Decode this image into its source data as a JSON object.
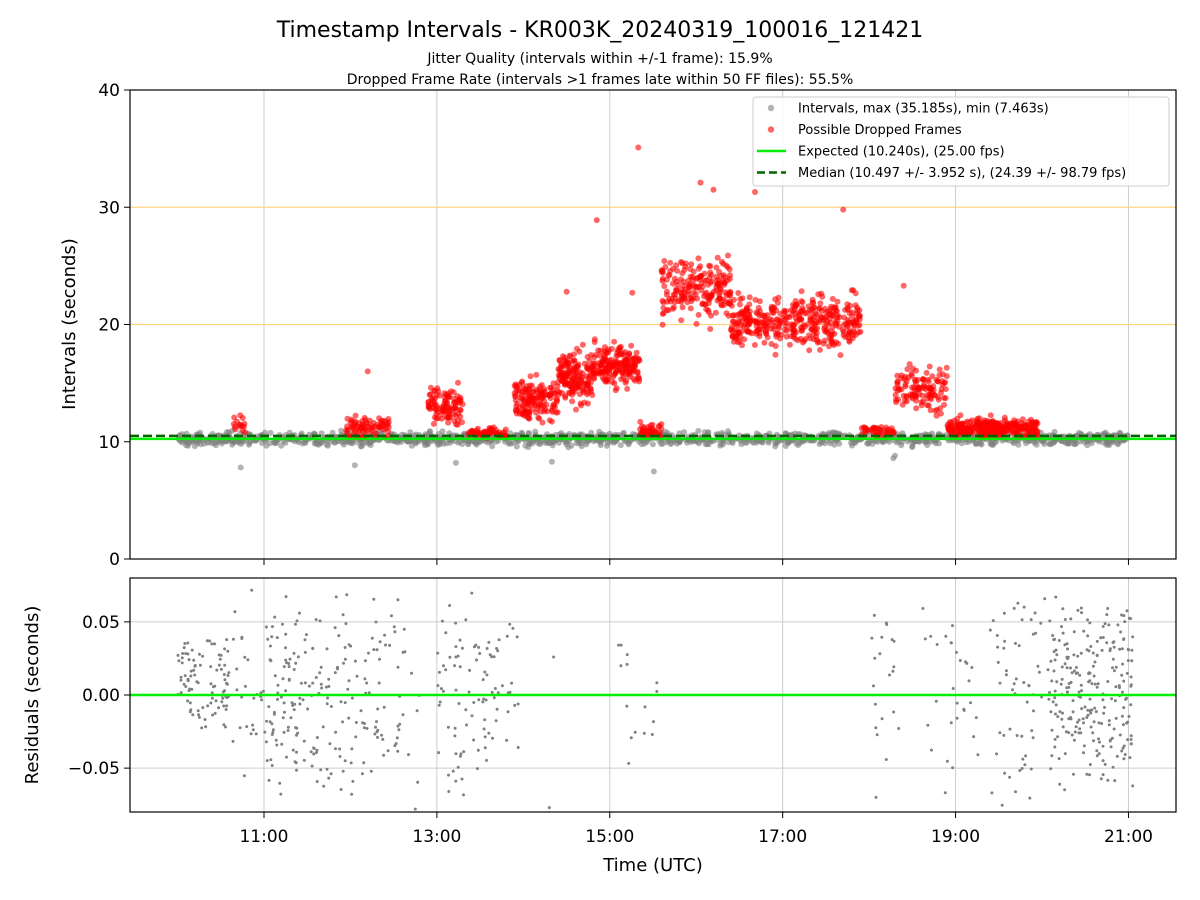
{
  "title": "Timestamp Intervals - KR003K_20240319_100016_121421",
  "subtitle_jitter": "Jitter Quality (intervals within +/-1 frame): 15.9%",
  "subtitle_dropped": "Dropped Frame Rate (intervals >1 frames late within 50 FF files): 55.5%",
  "colors": {
    "intervals": "#808080",
    "dropped": "#ff0000",
    "expected": "#00ee00",
    "median": "#006400",
    "threshold": "#ffd580",
    "grid": "#cccccc"
  },
  "chart_data": [
    {
      "type": "scatter",
      "xlabel": "",
      "ylabel": "Intervals (seconds)",
      "x_unit": "hours UTC",
      "xlim": [
        9.45,
        21.55
      ],
      "ylim": [
        0,
        40
      ],
      "yticks": [
        "0",
        "10",
        "20",
        "30",
        "40"
      ],
      "xticks": [
        11,
        13,
        15,
        17,
        19,
        21
      ],
      "grid": "vertical",
      "threshold_lines": [
        20,
        30
      ],
      "expected_line": 10.24,
      "median_line": 10.497,
      "legend_position": "top-right",
      "legend": [
        {
          "key": "intervals",
          "label": "Intervals, max (35.185s), min (7.463s)",
          "style": "marker"
        },
        {
          "key": "dropped",
          "label": "Possible Dropped Frames",
          "style": "marker"
        },
        {
          "key": "expected",
          "label": "Expected (10.240s), (25.00 fps)",
          "style": "line"
        },
        {
          "key": "median",
          "label": "Median (10.497 +/- 3.952 s), (24.39 +/- 98.79 fps)",
          "style": "dashed"
        }
      ],
      "series": [
        {
          "name": "Intervals, max (35.185s), min (7.463s)",
          "segments": [
            {
              "x0": 10.0,
              "x1": 21.0,
              "center": 10.25,
              "spread": 0.8,
              "count": 1400
            }
          ],
          "outliers": [
            [
              10.73,
              7.8
            ],
            [
              12.05,
              8.0
            ],
            [
              13.22,
              8.2
            ],
            [
              14.33,
              8.3
            ],
            [
              15.51,
              7.46
            ],
            [
              18.28,
              8.6
            ],
            [
              18.3,
              8.8
            ]
          ]
        },
        {
          "name": "Possible Dropped Frames",
          "segments": [
            {
              "x0": 10.65,
              "x1": 10.8,
              "center": 11.5,
              "spread": 1.0,
              "count": 15
            },
            {
              "x0": 11.95,
              "x1": 12.45,
              "center": 11.2,
              "spread": 1.5,
              "count": 80
            },
            {
              "x0": 12.9,
              "x1": 13.3,
              "center": 13.0,
              "spread": 2.5,
              "count": 100
            },
            {
              "x0": 13.35,
              "x1": 13.85,
              "center": 10.8,
              "spread": 0.6,
              "count": 60
            },
            {
              "x0": 13.9,
              "x1": 14.4,
              "center": 13.5,
              "spread": 2.6,
              "count": 150
            },
            {
              "x0": 14.4,
              "x1": 14.8,
              "center": 15.5,
              "spread": 3.2,
              "count": 150
            },
            {
              "x0": 14.8,
              "x1": 15.35,
              "center": 16.5,
              "spread": 2.6,
              "count": 180
            },
            {
              "x0": 15.35,
              "x1": 15.6,
              "center": 11.0,
              "spread": 0.8,
              "count": 40
            },
            {
              "x0": 15.6,
              "x1": 16.4,
              "center": 23.0,
              "spread": 3.6,
              "count": 200
            },
            {
              "x0": 16.4,
              "x1": 17.3,
              "center": 20.2,
              "spread": 3.0,
              "count": 220
            },
            {
              "x0": 17.3,
              "x1": 17.9,
              "center": 20.2,
              "spread": 3.4,
              "count": 160
            },
            {
              "x0": 17.9,
              "x1": 18.3,
              "center": 11.0,
              "spread": 0.8,
              "count": 40
            },
            {
              "x0": 18.3,
              "x1": 18.9,
              "center": 14.5,
              "spread": 3.2,
              "count": 120
            },
            {
              "x0": 18.9,
              "x1": 19.95,
              "center": 11.2,
              "spread": 1.1,
              "count": 300
            }
          ],
          "outliers": [
            [
              15.33,
              35.1
            ],
            [
              16.05,
              32.1
            ],
            [
              16.2,
              31.5
            ],
            [
              16.68,
              31.3
            ],
            [
              17.7,
              29.8
            ],
            [
              14.85,
              28.9
            ],
            [
              14.5,
              22.8
            ],
            [
              15.26,
              22.7
            ],
            [
              18.4,
              23.3
            ],
            [
              12.2,
              16.0
            ]
          ]
        }
      ]
    },
    {
      "type": "scatter",
      "xlabel": "Time (UTC)",
      "ylabel": "Residuals (seconds)",
      "x_unit": "hours UTC",
      "xlim": [
        9.45,
        21.55
      ],
      "ylim": [
        -0.08,
        0.08
      ],
      "yticks": [
        "−0.05",
        "0.00",
        "0.05"
      ],
      "ytick_values": [
        -0.05,
        0.0,
        0.05
      ],
      "xticks": [
        11,
        13,
        15,
        17,
        19,
        21
      ],
      "xtick_labels": [
        "11:00",
        "13:00",
        "15:00",
        "17:00",
        "19:00",
        "21:00"
      ],
      "grid": "both",
      "zero_line": 0.0,
      "series": [
        {
          "name": "",
          "segments": [
            {
              "x0": 10.0,
              "x1": 10.6,
              "center": 0.01,
              "spread": 0.035,
              "count": 95
            },
            {
              "x0": 10.6,
              "x1": 11.0,
              "center": 0.0,
              "spread": 0.08,
              "count": 25
            },
            {
              "x0": 11.0,
              "x1": 12.0,
              "center": 0.0,
              "spread": 0.08,
              "count": 150
            },
            {
              "x0": 12.0,
              "x1": 12.8,
              "center": 0.0,
              "spread": 0.08,
              "count": 70
            },
            {
              "x0": 13.0,
              "x1": 13.5,
              "center": 0.0,
              "spread": 0.075,
              "count": 55
            },
            {
              "x0": 13.5,
              "x1": 13.95,
              "center": 0.0,
              "spread": 0.07,
              "count": 40
            },
            {
              "x0": 15.1,
              "x1": 15.6,
              "center": 0.0,
              "spread": 0.065,
              "count": 15
            },
            {
              "x0": 18.0,
              "x1": 18.35,
              "center": 0.0,
              "spread": 0.07,
              "count": 20
            },
            {
              "x0": 18.6,
              "x1": 19.4,
              "center": 0.0,
              "spread": 0.08,
              "count": 30
            },
            {
              "x0": 19.4,
              "x1": 20.1,
              "center": 0.0,
              "spread": 0.08,
              "count": 60
            },
            {
              "x0": 20.1,
              "x1": 21.05,
              "center": 0.0,
              "spread": 0.07,
              "count": 240
            }
          ],
          "outliers": [
            [
              14.35,
              0.026
            ],
            [
              14.3,
              -0.077
            ],
            [
              12.75,
              -0.078
            ],
            [
              18.08,
              -0.07
            ]
          ]
        }
      ]
    }
  ]
}
